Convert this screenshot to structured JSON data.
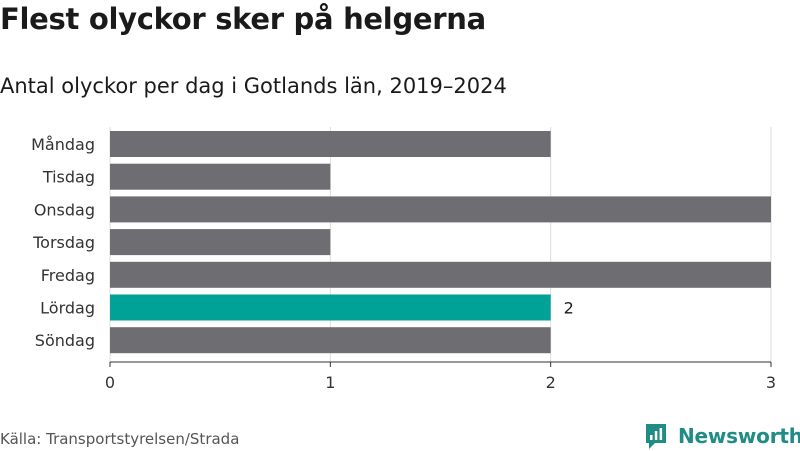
{
  "header": {
    "title": "Flest olyckor sker på helgerna",
    "subtitle": "Antal olyckor per dag i Gotlands län, 2019–2024"
  },
  "footer": {
    "source": "Källa: Transportstyrelsen/Strada",
    "brand": "Newsworthy"
  },
  "colors": {
    "bar": "#6e6d72",
    "highlight": "#00a196",
    "grid": "#dddddd",
    "axis": "#333333",
    "brand": "#1f8c85"
  },
  "chart_data": {
    "type": "bar",
    "orientation": "horizontal",
    "title": "Flest olyckor sker på helgerna",
    "subtitle": "Antal olyckor per dag i Gotlands län, 2019–2024",
    "categories": [
      "Måndag",
      "Tisdag",
      "Onsdag",
      "Torsdag",
      "Fredag",
      "Lördag",
      "Söndag"
    ],
    "values": [
      2,
      1,
      3,
      1,
      3,
      2,
      2
    ],
    "highlight_category": "Lördag",
    "data_labels": [
      {
        "category": "Lördag",
        "text": "2"
      }
    ],
    "xlim": [
      0,
      3
    ],
    "xticks": [
      "0",
      "1",
      "2",
      "3"
    ],
    "grid": true,
    "legend": "none"
  }
}
